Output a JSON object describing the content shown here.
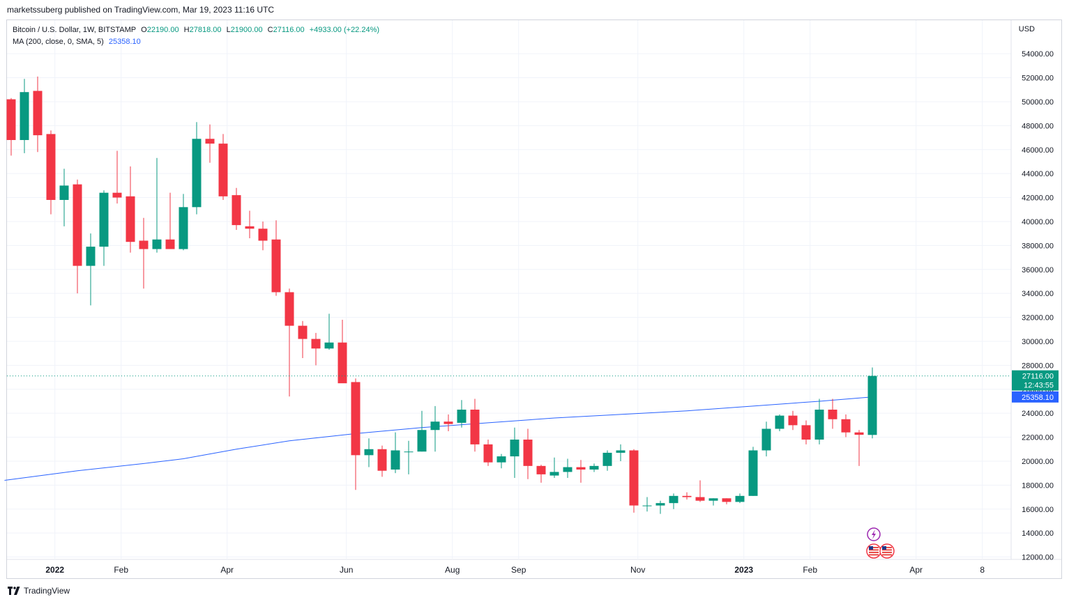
{
  "header": {
    "publisher": "marketssuberg published on TradingView.com, Mar 19, 2023 11:16 UTC"
  },
  "legend": {
    "symbol": "Bitcoin / U.S. Dollar, 1W, BITSTAMP",
    "o_key": "O",
    "o_val": "22190.00",
    "h_key": "H",
    "h_val": "27818.00",
    "l_key": "L",
    "l_val": "21900.00",
    "c_key": "C",
    "c_val": "27116.00",
    "change": "+4933.00 (+22.24%)",
    "ma_label": "MA (200, close, 0, SMA, 5)",
    "ma_value": "25358.10"
  },
  "footer": {
    "brand": "TradingView"
  },
  "chart_data": {
    "type": "candlestick",
    "currency_label": "USD",
    "y_ticks": [
      "12000.00",
      "14000.00",
      "16000.00",
      "18000.00",
      "20000.00",
      "22000.00",
      "24000.00",
      "26000.00",
      "28000.00",
      "30000.00",
      "32000.00",
      "34000.00",
      "36000.00",
      "38000.00",
      "40000.00",
      "42000.00",
      "44000.00",
      "46000.00",
      "48000.00",
      "50000.00",
      "52000.00",
      "54000.00"
    ],
    "ylim": [
      11800,
      56800
    ],
    "x_ticks": [
      {
        "label": "2022",
        "index": 3.3
      },
      {
        "label": "Feb",
        "index": 8.3
      },
      {
        "label": "Apr",
        "index": 16.3
      },
      {
        "label": "Jun",
        "index": 25.3
      },
      {
        "label": "Aug",
        "index": 33.3
      },
      {
        "label": "Sep",
        "index": 38.3
      },
      {
        "label": "Nov",
        "index": 47.3
      },
      {
        "label": "2023",
        "index": 55.3
      },
      {
        "label": "Feb",
        "index": 60.3
      },
      {
        "label": "Apr",
        "index": 68.3
      },
      {
        "label": "8",
        "index": 73.3
      }
    ],
    "bull_color": "#089981",
    "bear_color": "#f23645",
    "ma_color": "#2962ff",
    "last_price": "27116.00",
    "countdown": "12:43:55",
    "ma_last": "25358.10",
    "candles": [
      {
        "o": 50200,
        "h": 50300,
        "l": 45500,
        "c": 46800
      },
      {
        "o": 46800,
        "h": 51900,
        "l": 45700,
        "c": 50800
      },
      {
        "o": 50900,
        "h": 52100,
        "l": 45800,
        "c": 47200
      },
      {
        "o": 47300,
        "h": 47600,
        "l": 40600,
        "c": 41800
      },
      {
        "o": 41800,
        "h": 44400,
        "l": 39600,
        "c": 43000
      },
      {
        "o": 43100,
        "h": 43500,
        "l": 34000,
        "c": 36300
      },
      {
        "o": 36300,
        "h": 39000,
        "l": 33000,
        "c": 37900
      },
      {
        "o": 37900,
        "h": 42600,
        "l": 36300,
        "c": 42400
      },
      {
        "o": 42400,
        "h": 45900,
        "l": 41500,
        "c": 42000
      },
      {
        "o": 42100,
        "h": 44600,
        "l": 37400,
        "c": 38300
      },
      {
        "o": 38400,
        "h": 40300,
        "l": 34400,
        "c": 37700
      },
      {
        "o": 37700,
        "h": 45300,
        "l": 37400,
        "c": 38500
      },
      {
        "o": 38500,
        "h": 42400,
        "l": 37700,
        "c": 37700
      },
      {
        "o": 37700,
        "h": 42300,
        "l": 37600,
        "c": 41200
      },
      {
        "o": 41200,
        "h": 48300,
        "l": 40600,
        "c": 46900
      },
      {
        "o": 46900,
        "h": 48100,
        "l": 44900,
        "c": 46500
      },
      {
        "o": 46500,
        "h": 47300,
        "l": 41800,
        "c": 42100
      },
      {
        "o": 42200,
        "h": 42800,
        "l": 39300,
        "c": 39700
      },
      {
        "o": 39600,
        "h": 40900,
        "l": 38600,
        "c": 39400
      },
      {
        "o": 39400,
        "h": 40000,
        "l": 37600,
        "c": 38400
      },
      {
        "o": 38500,
        "h": 40100,
        "l": 33800,
        "c": 34100
      },
      {
        "o": 34100,
        "h": 34400,
        "l": 25400,
        "c": 31300
      },
      {
        "o": 31300,
        "h": 31700,
        "l": 28600,
        "c": 30200
      },
      {
        "o": 30200,
        "h": 30700,
        "l": 28000,
        "c": 29400
      },
      {
        "o": 29400,
        "h": 32300,
        "l": 29300,
        "c": 29900
      },
      {
        "o": 29900,
        "h": 31800,
        "l": 26600,
        "c": 26500
      },
      {
        "o": 26600,
        "h": 26900,
        "l": 17600,
        "c": 20500
      },
      {
        "o": 20500,
        "h": 21900,
        "l": 19500,
        "c": 21000
      },
      {
        "o": 21000,
        "h": 21300,
        "l": 18700,
        "c": 19200
      },
      {
        "o": 19300,
        "h": 22400,
        "l": 19000,
        "c": 20900
      },
      {
        "o": 20800,
        "h": 21700,
        "l": 18900,
        "c": 20800
      },
      {
        "o": 20800,
        "h": 24200,
        "l": 20800,
        "c": 22600
      },
      {
        "o": 22600,
        "h": 24600,
        "l": 20800,
        "c": 23300
      },
      {
        "o": 23300,
        "h": 23900,
        "l": 22500,
        "c": 23100
      },
      {
        "o": 23200,
        "h": 25100,
        "l": 22800,
        "c": 24300
      },
      {
        "o": 24300,
        "h": 25200,
        "l": 20800,
        "c": 21400
      },
      {
        "o": 21400,
        "h": 21800,
        "l": 19600,
        "c": 19900
      },
      {
        "o": 19900,
        "h": 20600,
        "l": 19400,
        "c": 20400
      },
      {
        "o": 20400,
        "h": 22800,
        "l": 18600,
        "c": 21800
      },
      {
        "o": 21800,
        "h": 22700,
        "l": 18500,
        "c": 19600
      },
      {
        "o": 19600,
        "h": 19700,
        "l": 18200,
        "c": 18900
      },
      {
        "o": 18800,
        "h": 20300,
        "l": 18600,
        "c": 19100
      },
      {
        "o": 19100,
        "h": 20200,
        "l": 18600,
        "c": 19500
      },
      {
        "o": 19500,
        "h": 20100,
        "l": 18200,
        "c": 19300
      },
      {
        "o": 19300,
        "h": 19800,
        "l": 19100,
        "c": 19600
      },
      {
        "o": 19600,
        "h": 20900,
        "l": 19200,
        "c": 20700
      },
      {
        "o": 20700,
        "h": 21400,
        "l": 20000,
        "c": 20900
      },
      {
        "o": 20900,
        "h": 21000,
        "l": 15700,
        "c": 16300
      },
      {
        "o": 16300,
        "h": 17000,
        "l": 15800,
        "c": 16300
      },
      {
        "o": 16300,
        "h": 16700,
        "l": 15600,
        "c": 16500
      },
      {
        "o": 16500,
        "h": 17300,
        "l": 16000,
        "c": 17100
      },
      {
        "o": 17100,
        "h": 17400,
        "l": 16800,
        "c": 17000
      },
      {
        "o": 17000,
        "h": 18400,
        "l": 16600,
        "c": 16700
      },
      {
        "o": 16700,
        "h": 16900,
        "l": 16300,
        "c": 16900
      },
      {
        "o": 16900,
        "h": 16900,
        "l": 16400,
        "c": 16600
      },
      {
        "o": 16600,
        "h": 17300,
        "l": 16500,
        "c": 17100
      },
      {
        "o": 17100,
        "h": 21200,
        "l": 17100,
        "c": 20900
      },
      {
        "o": 20900,
        "h": 23300,
        "l": 20400,
        "c": 22700
      },
      {
        "o": 22700,
        "h": 23900,
        "l": 22500,
        "c": 23800
      },
      {
        "o": 23800,
        "h": 24200,
        "l": 22600,
        "c": 23000
      },
      {
        "o": 23000,
        "h": 23400,
        "l": 21400,
        "c": 21800
      },
      {
        "o": 21800,
        "h": 25200,
        "l": 21400,
        "c": 24300
      },
      {
        "o": 24300,
        "h": 25200,
        "l": 22700,
        "c": 23500
      },
      {
        "o": 23500,
        "h": 23900,
        "l": 22000,
        "c": 22400
      },
      {
        "o": 22400,
        "h": 22600,
        "l": 19600,
        "c": 22200
      },
      {
        "o": 22190,
        "h": 27818,
        "l": 21900,
        "c": 27116
      }
    ],
    "ma_points": [
      {
        "index": -0.5,
        "value": 18400
      },
      {
        "index": 5,
        "value": 19200
      },
      {
        "index": 10,
        "value": 19800
      },
      {
        "index": 13,
        "value": 20200
      },
      {
        "index": 17,
        "value": 21000
      },
      {
        "index": 21,
        "value": 21700
      },
      {
        "index": 26,
        "value": 22300
      },
      {
        "index": 31,
        "value": 22800
      },
      {
        "index": 36,
        "value": 23200
      },
      {
        "index": 41,
        "value": 23600
      },
      {
        "index": 46,
        "value": 23900
      },
      {
        "index": 51,
        "value": 24200
      },
      {
        "index": 56,
        "value": 24600
      },
      {
        "index": 61,
        "value": 25000
      },
      {
        "index": 65,
        "value": 25358
      }
    ],
    "events": [
      {
        "icon": "lightning-event-icon",
        "index": 65
      },
      {
        "icon": "us-flag-event-icon",
        "index": 65
      },
      {
        "icon": "us-flag-event-icon",
        "index": 66
      }
    ]
  }
}
